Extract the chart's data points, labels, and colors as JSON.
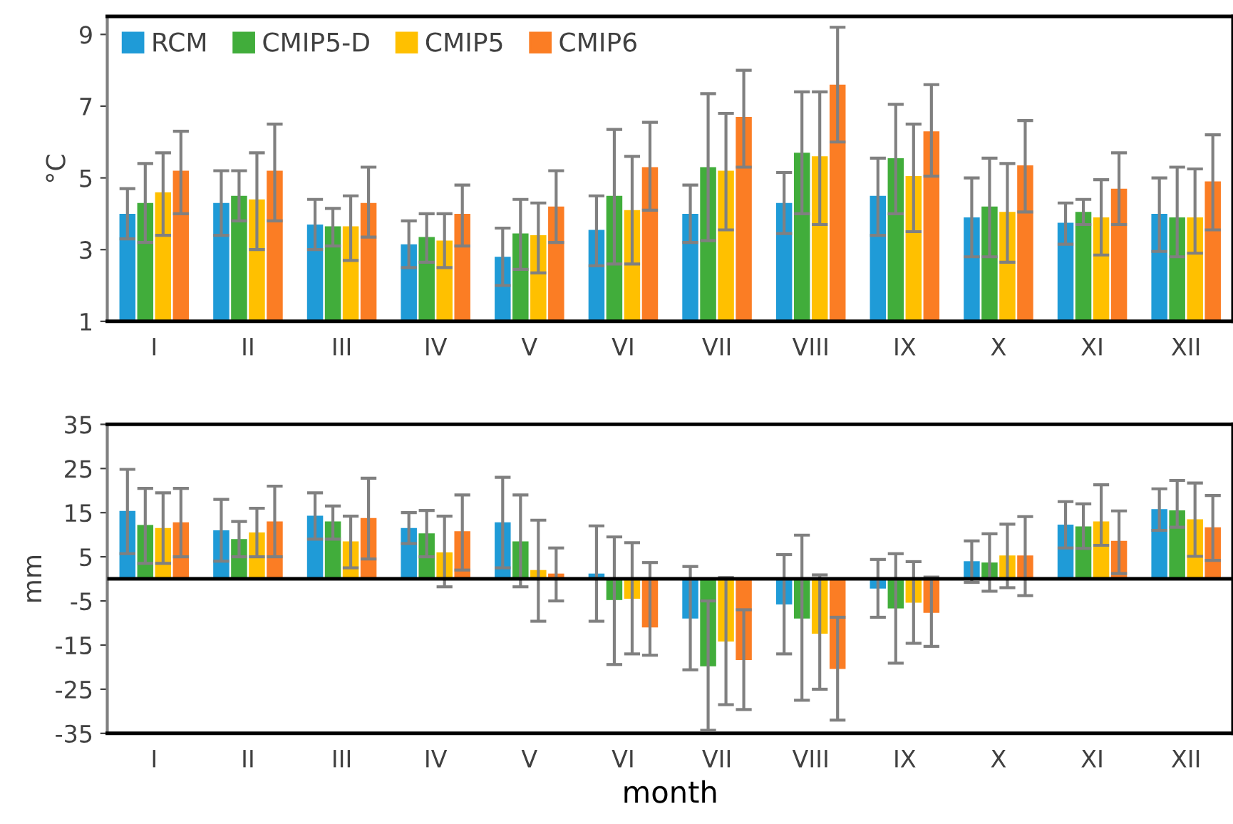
{
  "chart_data": [
    {
      "type": "bar",
      "ylabel": "°C",
      "categories": [
        "I",
        "II",
        "III",
        "IV",
        "V",
        "VI",
        "VII",
        "VIII",
        "IX",
        "X",
        "XI",
        "XII"
      ],
      "ylim": [
        1,
        9.5
      ],
      "yticks": [
        1,
        3,
        5,
        7,
        9
      ],
      "legend": "top left",
      "grid": false,
      "series": [
        {
          "name": "RCM",
          "color": "#1f9bd7",
          "values": [
            4.0,
            4.3,
            3.7,
            3.15,
            2.8,
            3.55,
            4.0,
            4.3,
            4.5,
            3.9,
            3.75,
            4.0
          ],
          "errors": [
            [
              3.3,
              4.7
            ],
            [
              3.4,
              5.2
            ],
            [
              3.0,
              4.4
            ],
            [
              2.5,
              3.8
            ],
            [
              2.0,
              3.6
            ],
            [
              2.55,
              4.5
            ],
            [
              3.2,
              4.8
            ],
            [
              3.45,
              5.15
            ],
            [
              3.4,
              5.55
            ],
            [
              2.8,
              5.0
            ],
            [
              3.15,
              4.3
            ],
            [
              2.95,
              5.0
            ]
          ]
        },
        {
          "name": "CMIP5-D",
          "color": "#41ad3b",
          "values": [
            4.3,
            4.5,
            3.65,
            3.35,
            3.45,
            4.5,
            5.3,
            5.7,
            5.55,
            4.2,
            4.05,
            3.9
          ],
          "errors": [
            [
              3.2,
              5.4
            ],
            [
              3.8,
              5.2
            ],
            [
              3.1,
              4.15
            ],
            [
              2.65,
              4.0
            ],
            [
              2.45,
              4.4
            ],
            [
              2.6,
              6.35
            ],
            [
              3.25,
              7.35
            ],
            [
              4.0,
              7.4
            ],
            [
              4.0,
              7.05
            ],
            [
              2.8,
              5.55
            ],
            [
              3.7,
              4.4
            ],
            [
              2.8,
              5.3
            ]
          ]
        },
        {
          "name": "CMIP5",
          "color": "#ffc000",
          "values": [
            4.6,
            4.4,
            3.65,
            3.25,
            3.4,
            4.1,
            5.2,
            5.6,
            5.05,
            4.05,
            3.9,
            3.9
          ],
          "errors": [
            [
              3.4,
              5.7
            ],
            [
              3.0,
              5.7
            ],
            [
              2.7,
              4.5
            ],
            [
              2.5,
              4.0
            ],
            [
              2.35,
              4.3
            ],
            [
              2.6,
              5.6
            ],
            [
              3.55,
              6.8
            ],
            [
              3.7,
              7.4
            ],
            [
              3.5,
              6.5
            ],
            [
              2.65,
              5.4
            ],
            [
              2.85,
              4.95
            ],
            [
              2.9,
              5.25
            ]
          ]
        },
        {
          "name": "CMIP6",
          "color": "#fb7d24",
          "values": [
            5.2,
            5.2,
            4.3,
            4.0,
            4.2,
            5.3,
            6.7,
            7.6,
            6.3,
            5.35,
            4.7,
            4.9
          ],
          "errors": [
            [
              4.0,
              6.3
            ],
            [
              3.8,
              6.5
            ],
            [
              3.35,
              5.3
            ],
            [
              3.1,
              4.8
            ],
            [
              3.2,
              5.2
            ],
            [
              4.1,
              6.55
            ],
            [
              5.3,
              8.0
            ],
            [
              6.0,
              9.2
            ],
            [
              5.05,
              7.6
            ],
            [
              4.05,
              6.6
            ],
            [
              3.7,
              5.7
            ],
            [
              3.55,
              6.2
            ]
          ]
        }
      ]
    },
    {
      "type": "bar",
      "ylabel": "mm",
      "xlabel": "month",
      "categories": [
        "I",
        "II",
        "III",
        "IV",
        "V",
        "VI",
        "VII",
        "VIII",
        "IX",
        "X",
        "XI",
        "XII"
      ],
      "ylim": [
        -35,
        35
      ],
      "yticks": [
        -35,
        -25,
        -15,
        -5,
        5,
        15,
        25,
        35
      ],
      "grid": false,
      "ref_lines": [
        {
          "axis": "y",
          "value": 0,
          "label": null,
          "color": "#000000"
        }
      ],
      "series": [
        {
          "color": "#1f9bd7",
          "values": [
            15.4,
            11,
            14.3,
            11.5,
            12.8,
            1.2,
            -9.0,
            -5.8,
            -2.2,
            4.0,
            12.3,
            15.8
          ],
          "errors": [
            [
              5.7,
              24.8
            ],
            [
              4,
              18
            ],
            [
              9,
              19.5
            ],
            [
              8,
              15
            ],
            [
              2.5,
              23
            ],
            [
              -9.6,
              12
            ],
            [
              -20.6,
              2.8
            ],
            [
              -17,
              5.5
            ],
            [
              -8.7,
              4.4
            ],
            [
              -0.8,
              8.6
            ],
            [
              7.0,
              17.5
            ],
            [
              11.0,
              20.4
            ]
          ]
        },
        {
          "color": "#41ad3b",
          "values": [
            12.2,
            9,
            13,
            10.3,
            8.5,
            -4.8,
            -19.8,
            -9.0,
            -6.7,
            3.7,
            11.9,
            15.5
          ],
          "errors": [
            [
              3.5,
              20.5
            ],
            [
              5,
              13
            ],
            [
              9,
              16.5
            ],
            [
              5,
              15.5
            ],
            [
              -1.8,
              19
            ],
            [
              -19.4,
              9.5
            ],
            [
              -34.3,
              -5
            ],
            [
              -27.5,
              9.9
            ],
            [
              -19.1,
              5.7
            ],
            [
              -2.8,
              10.2
            ],
            [
              6.9,
              17.0
            ],
            [
              11.7,
              22.3
            ]
          ]
        },
        {
          "color": "#ffc000",
          "values": [
            11.5,
            10.5,
            8.5,
            6,
            2,
            -4.5,
            -14.2,
            -12.4,
            -5.4,
            5.3,
            13.0,
            13.5
          ],
          "errors": [
            [
              3.5,
              19.5
            ],
            [
              5,
              16
            ],
            [
              2.5,
              14.2
            ],
            [
              -1.8,
              14.2
            ],
            [
              -9.6,
              13.3
            ],
            [
              -17,
              8.2
            ],
            [
              -28.5,
              0.3
            ],
            [
              -25,
              0.9
            ],
            [
              -14.6,
              3.9
            ],
            [
              -2.0,
              12.4
            ],
            [
              7.6,
              21.3
            ],
            [
              5.1,
              21.7
            ]
          ]
        },
        {
          "color": "#fb7d24",
          "values": [
            12.8,
            13,
            13.8,
            10.8,
            1.2,
            -11,
            -18.4,
            -20.4,
            -7.7,
            5.3,
            8.6,
            11.7
          ],
          "errors": [
            [
              5,
              20.5
            ],
            [
              5,
              21
            ],
            [
              4.5,
              22.8
            ],
            [
              2,
              19
            ],
            [
              -5,
              7
            ],
            [
              -17.3,
              3.7
            ],
            [
              -29.6,
              -7
            ],
            [
              -32,
              -8.7
            ],
            [
              -15.3,
              0.4
            ],
            [
              -3.8,
              14.1
            ],
            [
              1.2,
              15.4
            ],
            [
              4.2,
              18.9
            ]
          ]
        }
      ]
    }
  ]
}
